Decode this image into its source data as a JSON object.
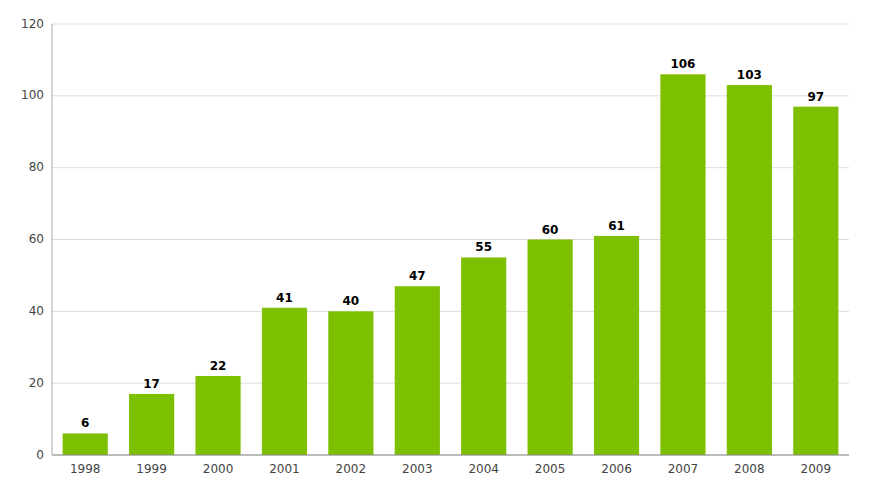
{
  "chart_data": {
    "type": "bar",
    "categories": [
      "1998",
      "1999",
      "2000",
      "2001",
      "2002",
      "2003",
      "2004",
      "2005",
      "2006",
      "2007",
      "2008",
      "2009"
    ],
    "values": [
      6,
      17,
      22,
      41,
      40,
      47,
      55,
      60,
      61,
      106,
      103,
      97
    ],
    "color": "#7DC000",
    "ylim": [
      0,
      120
    ],
    "yticks": [
      0,
      20,
      40,
      60,
      80,
      100,
      120
    ],
    "grid": true,
    "data_labels": true
  }
}
